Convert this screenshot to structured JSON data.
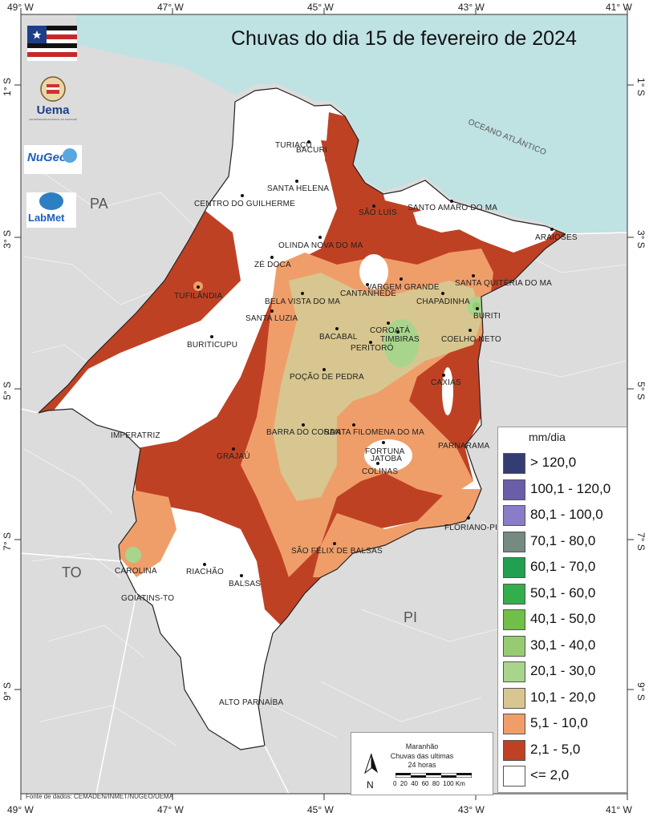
{
  "title": "Chuvas do dia 15 de fevereiro de 2024",
  "axes": {
    "top_ticks": [
      "49° W",
      "47° W",
      "45° W",
      "43° W",
      "41° W"
    ],
    "bottom_ticks": [
      "49° W",
      "47° W",
      "45° W",
      "43° W",
      "41° W"
    ],
    "left_ticks": [
      "1° S",
      "3° S",
      "5° S",
      "7° S",
      "9° S"
    ],
    "right_ticks": [
      "1° S",
      "3° S",
      "5° S",
      "7° S",
      "9° S"
    ]
  },
  "regions": {
    "pa": "PA",
    "to": "TO",
    "pi": "PI",
    "ocean": "OCEANO ATLÂNTICO"
  },
  "cities": [
    {
      "name": "TURIAÇU"
    },
    {
      "name": "BACURI"
    },
    {
      "name": "SANTA HELENA"
    },
    {
      "name": "CENTRO DO GUILHERME"
    },
    {
      "name": "SÃO LUÍS"
    },
    {
      "name": "SANTO AMARO DO MA"
    },
    {
      "name": "ARAIOSES"
    },
    {
      "name": "OLINDA NOVA DO MA"
    },
    {
      "name": "ZÉ DOCA"
    },
    {
      "name": "VARGEM GRANDE"
    },
    {
      "name": "CANTANHEDE"
    },
    {
      "name": "SANTA QUITÉRIA DO MA"
    },
    {
      "name": "TUFILÂNDIA"
    },
    {
      "name": "BELA VISTA DO MA"
    },
    {
      "name": "CHAPADINHA"
    },
    {
      "name": "SANTA LUZIA"
    },
    {
      "name": "BURITI"
    },
    {
      "name": "COROATÁ"
    },
    {
      "name": "BACABAL"
    },
    {
      "name": "TIMBIRAS"
    },
    {
      "name": "COELHO NETO"
    },
    {
      "name": "BURITICUPU"
    },
    {
      "name": "PERITORÓ"
    },
    {
      "name": "POÇÃO DE PEDRA"
    },
    {
      "name": "CAXIAS"
    },
    {
      "name": "IMPERATRIZ"
    },
    {
      "name": "BARRA DO CORDA"
    },
    {
      "name": "SANTA FILOMENA DO MA"
    },
    {
      "name": "FORTUNA"
    },
    {
      "name": "JATOBÁ"
    },
    {
      "name": "PARNARAMA"
    },
    {
      "name": "GRAJAÚ"
    },
    {
      "name": "COLINAS"
    },
    {
      "name": "FLORIANO-PI"
    },
    {
      "name": "SÃO FÉLIX DE BALSAS"
    },
    {
      "name": "CAROLINA"
    },
    {
      "name": "RIACHÃO"
    },
    {
      "name": "BALSAS"
    },
    {
      "name": "GOIATINS-TO"
    },
    {
      "name": "ALTO PARNAÍBA"
    }
  ],
  "logos": {
    "uema": "Uema",
    "uema_sub": "UNIVERSIDADE ESTADUAL DO MARANHÃO",
    "nugeo": "NuGeo",
    "labmet": "LabMet"
  },
  "legend": {
    "title": "mm/dia",
    "items": [
      {
        "label": "> 120,0",
        "color": "#343d73"
      },
      {
        "label": "100,1 - 120,0",
        "color": "#6b5ea8"
      },
      {
        "label": "80,1 - 100,0",
        "color": "#8a7cc6"
      },
      {
        "label": "70,1 - 80,0",
        "color": "#758a80"
      },
      {
        "label": "60,1 - 70,0",
        "color": "#22a052"
      },
      {
        "label": "50,1 - 60,0",
        "color": "#34ad4c"
      },
      {
        "label": "40,1 - 50,0",
        "color": "#70bf48"
      },
      {
        "label": "30,1 - 40,0",
        "color": "#96cb72"
      },
      {
        "label": "20,1 - 30,0",
        "color": "#a8d58b"
      },
      {
        "label": "10,1 - 20,0",
        "color": "#d7c68f"
      },
      {
        "label": "5,1 - 10,0",
        "color": "#ef9e6a"
      },
      {
        "label": "2,1 - 5,0",
        "color": "#bf4124"
      },
      {
        "label": "<= 2,0",
        "color": "#ffffff"
      }
    ]
  },
  "infobox": {
    "line1": "Maranhão",
    "line2": "Chuvas das ultimas",
    "line3": "24 horas",
    "north": "N",
    "scale": "0  20  40  60  80  100 Km"
  },
  "source": "Fonte de dados: CEMADEN/INMET/NUGEO/UEMA",
  "colors": {
    "ocean": "#bfe2e3",
    "land": "#dcdcdc",
    "border": "#ffffff"
  }
}
